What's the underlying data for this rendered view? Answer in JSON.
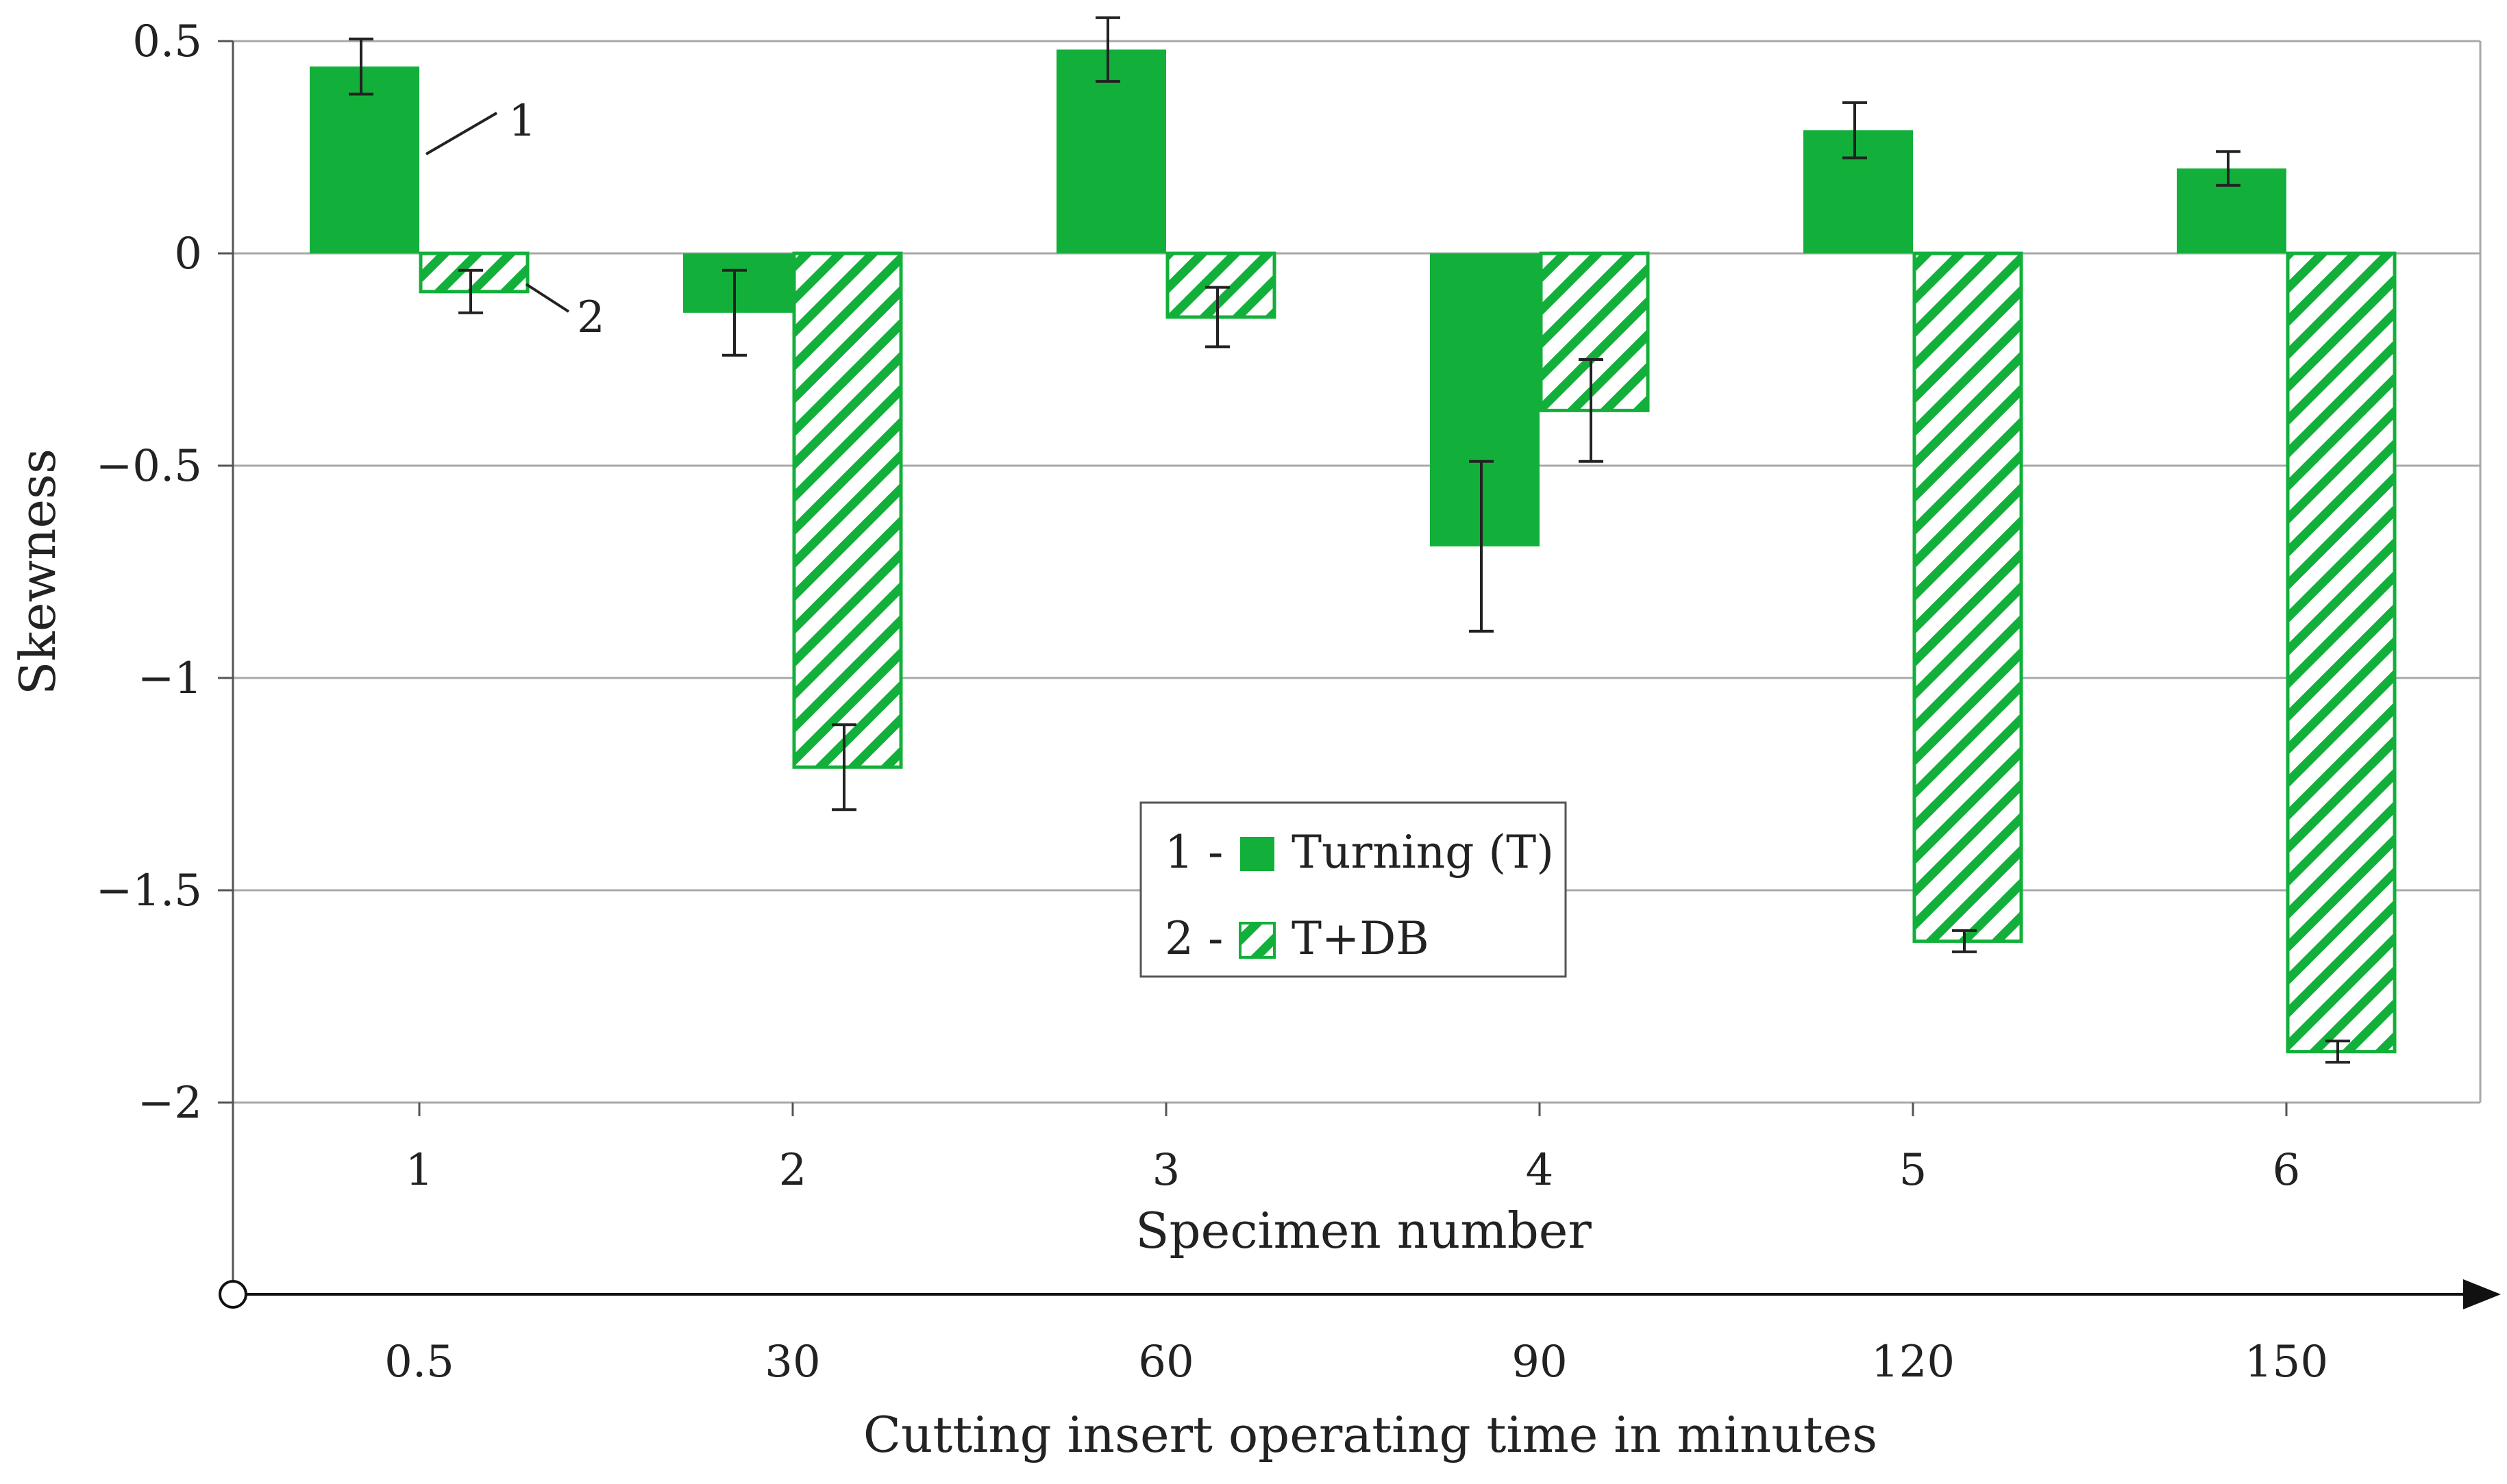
{
  "chart_data": {
    "type": "bar",
    "title": "",
    "xlabel": "Specimen number",
    "x2label": "Cutting insert operating time in minutes",
    "ylabel": "Skewness",
    "ylim": [
      -2,
      0.5
    ],
    "yticks": [
      0.5,
      0,
      -0.5,
      -1,
      -1.5,
      -2
    ],
    "ytick_labels": [
      "0.5",
      "0",
      "−0.5",
      "−1",
      "−1.5",
      "−2"
    ],
    "categories": [
      "1",
      "2",
      "3",
      "4",
      "5",
      "6"
    ],
    "secondary_categories": [
      "0.5",
      "30",
      "60",
      "90",
      "120",
      "150"
    ],
    "grid": true,
    "legend_position": "center",
    "series": [
      {
        "name": "Turning (T)",
        "legend_prefix": "1 -",
        "callout": "1",
        "pattern": "solid",
        "values": [
          0.44,
          -0.14,
          0.48,
          -0.69,
          0.29,
          0.2
        ],
        "errors": [
          0.065,
          0.1,
          0.075,
          0.2,
          0.065,
          0.04
        ]
      },
      {
        "name": "T+DB",
        "legend_prefix": "2 -",
        "callout": "2",
        "pattern": "hatched",
        "values": [
          -0.09,
          -1.21,
          -0.15,
          -0.37,
          -1.62,
          -1.88
        ],
        "errors": [
          0.05,
          0.1,
          0.07,
          0.12,
          0.025,
          0.025
        ]
      }
    ],
    "colors": {
      "bar": "#12b03a",
      "grid": "#a8a8a8",
      "axis": "#555555",
      "error": "#222222"
    }
  }
}
